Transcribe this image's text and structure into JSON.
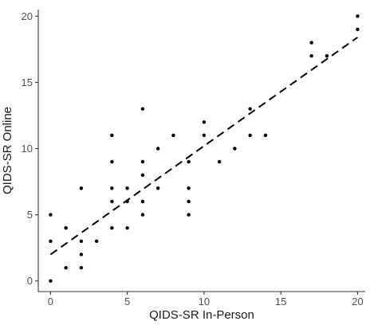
{
  "chart_data": {
    "type": "scatter",
    "title": "",
    "xlabel": "QIDS-SR In-Person",
    "ylabel": "QIDS-SR Online",
    "xlim": [
      -0.8,
      20.5
    ],
    "ylim": [
      -0.8,
      20.5
    ],
    "x_ticks": [
      0,
      5,
      10,
      15,
      20
    ],
    "y_ticks": [
      0,
      5,
      10,
      15,
      20
    ],
    "grid": false,
    "legend": "none",
    "points": [
      {
        "x": 0,
        "y": 0
      },
      {
        "x": 0,
        "y": 3
      },
      {
        "x": 0,
        "y": 5
      },
      {
        "x": 1,
        "y": 1
      },
      {
        "x": 1,
        "y": 4
      },
      {
        "x": 2,
        "y": 1
      },
      {
        "x": 2,
        "y": 2
      },
      {
        "x": 2,
        "y": 3
      },
      {
        "x": 2,
        "y": 7
      },
      {
        "x": 3,
        "y": 3
      },
      {
        "x": 4,
        "y": 4
      },
      {
        "x": 4,
        "y": 6
      },
      {
        "x": 4,
        "y": 7
      },
      {
        "x": 4,
        "y": 9
      },
      {
        "x": 4,
        "y": 11
      },
      {
        "x": 5,
        "y": 4
      },
      {
        "x": 5,
        "y": 6
      },
      {
        "x": 5,
        "y": 7
      },
      {
        "x": 6,
        "y": 5
      },
      {
        "x": 6,
        "y": 6
      },
      {
        "x": 6,
        "y": 8
      },
      {
        "x": 6,
        "y": 9
      },
      {
        "x": 6,
        "y": 13
      },
      {
        "x": 7,
        "y": 7
      },
      {
        "x": 7,
        "y": 10
      },
      {
        "x": 8,
        "y": 11
      },
      {
        "x": 9,
        "y": 5
      },
      {
        "x": 9,
        "y": 6
      },
      {
        "x": 9,
        "y": 7
      },
      {
        "x": 9,
        "y": 9
      },
      {
        "x": 10,
        "y": 11
      },
      {
        "x": 10,
        "y": 12
      },
      {
        "x": 11,
        "y": 9
      },
      {
        "x": 12,
        "y": 10
      },
      {
        "x": 13,
        "y": 11
      },
      {
        "x": 13,
        "y": 13
      },
      {
        "x": 14,
        "y": 11
      },
      {
        "x": 17,
        "y": 17
      },
      {
        "x": 17,
        "y": 18
      },
      {
        "x": 18,
        "y": 17
      },
      {
        "x": 20,
        "y": 19
      },
      {
        "x": 20,
        "y": 20
      }
    ],
    "trend_line": {
      "style": "dashed",
      "color": "#000000",
      "from": {
        "x": 0,
        "y": 2
      },
      "to": {
        "x": 20,
        "y": 18.4
      }
    },
    "point_color": "#000000"
  }
}
